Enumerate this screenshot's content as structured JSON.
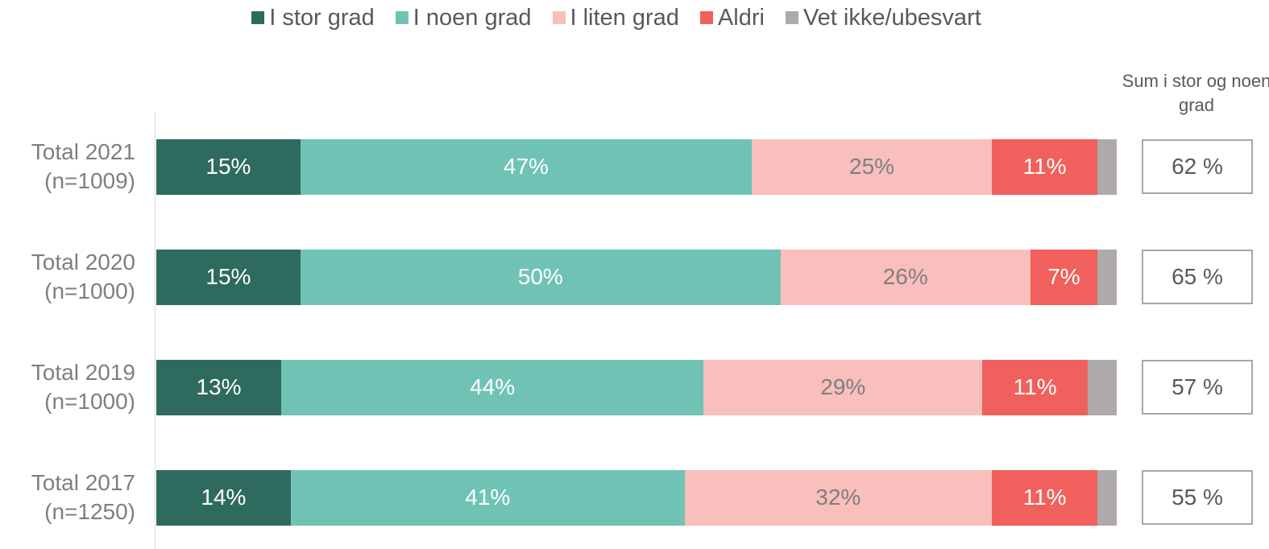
{
  "chart_data": {
    "type": "stacked_bar_horizontal",
    "categories": [
      "Total 2021 (n=1009)",
      "Total 2020 (n=1000)",
      "Total 2019 (n=1000)",
      "Total 2017 (n=1250)"
    ],
    "xlim": [
      0,
      100
    ],
    "series": [
      {
        "name": "I stor grad",
        "color": "#2e6b5e",
        "label_color": "#ffffff",
        "values": [
          15,
          15,
          13,
          14
        ],
        "value_labels": [
          "15%",
          "15%",
          "13%",
          "14%"
        ]
      },
      {
        "name": "I noen grad",
        "color": "#70c3b4",
        "label_color": "#ffffff",
        "values": [
          47,
          50,
          44,
          41
        ],
        "value_labels": [
          "47%",
          "50%",
          "44%",
          "41%"
        ]
      },
      {
        "name": "I liten grad",
        "color": "#f8bfbc",
        "label_color": "#7f7f7f",
        "values": [
          25,
          26,
          29,
          32
        ],
        "value_labels": [
          "25%",
          "26%",
          "29%",
          "32%"
        ]
      },
      {
        "name": "Aldri",
        "color": "#f0605c",
        "label_color": "#ffffff",
        "values": [
          11,
          7,
          11,
          11
        ],
        "value_labels": [
          "11%",
          "7%",
          "11%",
          "11%"
        ]
      },
      {
        "name": "Vet ikke/ubesvart",
        "color": "#aeaaaa",
        "values": [
          2,
          2,
          3,
          2
        ]
      }
    ],
    "totals": {
      "title": "Sum i stor og noen grad",
      "values": [
        62,
        65,
        57,
        55
      ],
      "value_labels": [
        "62 %",
        "65 %",
        "57 %",
        "55 %"
      ]
    }
  }
}
